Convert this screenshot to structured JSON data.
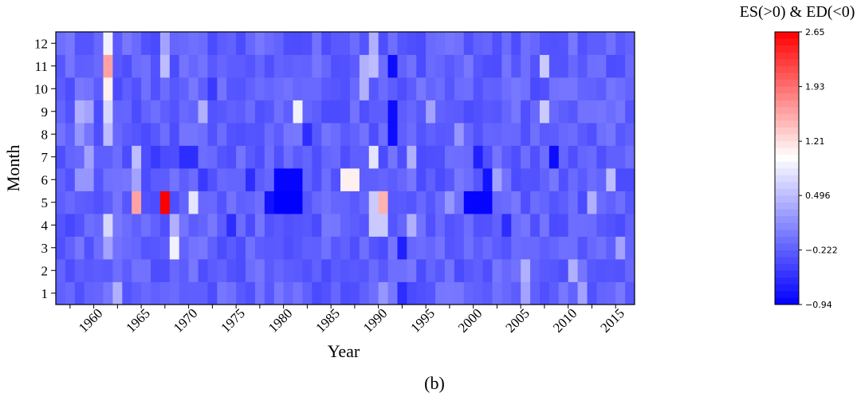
{
  "chart_data": {
    "type": "heatmap",
    "title": "",
    "panel_label": "(b)",
    "xlabel": "Year",
    "ylabel": "Month",
    "x_start": 1956,
    "x_end": 2016,
    "xticks": [
      "1960",
      "1965",
      "1970",
      "1975",
      "1980",
      "1985",
      "1990",
      "1995",
      "2000",
      "2005",
      "2010",
      "2015"
    ],
    "yticks": [
      "1",
      "2",
      "3",
      "4",
      "5",
      "6",
      "7",
      "8",
      "9",
      "10",
      "11",
      "12"
    ],
    "colorbar": {
      "title": "ES(>0) & ED(<0)",
      "min": -0.94,
      "max": 2.65,
      "ticks": [
        "2.65",
        "1.93",
        "1.21",
        "0.496",
        "−0.222",
        "−0.94"
      ],
      "tick_values": [
        2.65,
        1.93,
        1.21,
        0.496,
        -0.222,
        -0.94
      ],
      "colors": [
        "#0000ff",
        "#ffffff",
        "#ff0000"
      ]
    },
    "base_value": -0.2,
    "cells": [
      {
        "year": 1961,
        "month": 12,
        "value": 0.9
      },
      {
        "year": 1961,
        "month": 11,
        "value": 1.6
      },
      {
        "year": 1961,
        "month": 10,
        "value": 1.1
      },
      {
        "year": 1961,
        "month": 9,
        "value": 0.7
      },
      {
        "year": 1961,
        "month": 8,
        "value": 0.5
      },
      {
        "year": 1961,
        "month": 4,
        "value": 0.7
      },
      {
        "year": 1961,
        "month": 3,
        "value": 0.3
      },
      {
        "year": 1962,
        "month": 1,
        "value": 0.4
      },
      {
        "year": 1958,
        "month": 9,
        "value": 0.4
      },
      {
        "year": 1959,
        "month": 9,
        "value": 0.3
      },
      {
        "year": 1958,
        "month": 8,
        "value": 0.2
      },
      {
        "year": 1959,
        "month": 7,
        "value": 0.3
      },
      {
        "year": 1958,
        "month": 6,
        "value": 0.2
      },
      {
        "year": 1959,
        "month": 6,
        "value": 0.2
      },
      {
        "year": 1957,
        "month": 4,
        "value": -0.4
      },
      {
        "year": 1958,
        "month": 4,
        "value": -0.3
      },
      {
        "year": 1964,
        "month": 7,
        "value": 0.5
      },
      {
        "year": 1964,
        "month": 5,
        "value": 1.6
      },
      {
        "year": 1964,
        "month": 6,
        "value": 0.3
      },
      {
        "year": 1967,
        "month": 5,
        "value": 2.65
      },
      {
        "year": 1967,
        "month": 11,
        "value": 0.5
      },
      {
        "year": 1967,
        "month": 12,
        "value": 0.3
      },
      {
        "year": 1968,
        "month": 3,
        "value": 0.9
      },
      {
        "year": 1968,
        "month": 4,
        "value": 0.4
      },
      {
        "year": 1966,
        "month": 7,
        "value": -0.5
      },
      {
        "year": 1969,
        "month": 7,
        "value": -0.6
      },
      {
        "year": 1970,
        "month": 7,
        "value": -0.6
      },
      {
        "year": 1970,
        "month": 5,
        "value": 0.8
      },
      {
        "year": 1971,
        "month": 9,
        "value": 0.4
      },
      {
        "year": 1971,
        "month": 6,
        "value": -0.5
      },
      {
        "year": 1972,
        "month": 10,
        "value": -0.5
      },
      {
        "year": 1974,
        "month": 4,
        "value": -0.6
      },
      {
        "year": 1976,
        "month": 6,
        "value": -0.6
      },
      {
        "year": 1978,
        "month": 5,
        "value": -0.8
      },
      {
        "year": 1979,
        "month": 6,
        "value": -0.9
      },
      {
        "year": 1980,
        "month": 6,
        "value": -0.9
      },
      {
        "year": 1981,
        "month": 6,
        "value": -0.9
      },
      {
        "year": 1979,
        "month": 5,
        "value": -0.94
      },
      {
        "year": 1980,
        "month": 5,
        "value": -0.94
      },
      {
        "year": 1981,
        "month": 5,
        "value": -0.94
      },
      {
        "year": 1981,
        "month": 9,
        "value": 0.9
      },
      {
        "year": 1982,
        "month": 8,
        "value": -0.6
      },
      {
        "year": 1986,
        "month": 6,
        "value": 1.1
      },
      {
        "year": 1987,
        "month": 6,
        "value": 1.1
      },
      {
        "year": 1988,
        "month": 11,
        "value": 0.4
      },
      {
        "year": 1988,
        "month": 10,
        "value": 0.4
      },
      {
        "year": 1989,
        "month": 12,
        "value": 0.4
      },
      {
        "year": 1989,
        "month": 11,
        "value": 0.5
      },
      {
        "year": 1989,
        "month": 7,
        "value": 0.8
      },
      {
        "year": 1989,
        "month": 5,
        "value": 0.6
      },
      {
        "year": 1989,
        "month": 4,
        "value": 0.6
      },
      {
        "year": 1990,
        "month": 5,
        "value": 1.5
      },
      {
        "year": 1990,
        "month": 4,
        "value": 0.6
      },
      {
        "year": 1990,
        "month": 1,
        "value": 0.2
      },
      {
        "year": 1991,
        "month": 11,
        "value": -0.85
      },
      {
        "year": 1991,
        "month": 9,
        "value": -0.85
      },
      {
        "year": 1991,
        "month": 8,
        "value": -0.85
      },
      {
        "year": 1992,
        "month": 3,
        "value": -0.7
      },
      {
        "year": 1992,
        "month": 1,
        "value": -0.6
      },
      {
        "year": 1993,
        "month": 7,
        "value": 0.4
      },
      {
        "year": 1993,
        "month": 4,
        "value": 0.4
      },
      {
        "year": 1995,
        "month": 9,
        "value": 0.3
      },
      {
        "year": 1997,
        "month": 5,
        "value": 0.2
      },
      {
        "year": 1998,
        "month": 8,
        "value": 0.2
      },
      {
        "year": 1999,
        "month": 5,
        "value": -0.9
      },
      {
        "year": 2000,
        "month": 5,
        "value": -0.9
      },
      {
        "year": 2001,
        "month": 5,
        "value": -0.9
      },
      {
        "year": 2001,
        "month": 6,
        "value": -0.8
      },
      {
        "year": 2000,
        "month": 7,
        "value": -0.7
      },
      {
        "year": 2002,
        "month": 6,
        "value": 0.3
      },
      {
        "year": 2003,
        "month": 4,
        "value": -0.6
      },
      {
        "year": 2005,
        "month": 2,
        "value": 0.4
      },
      {
        "year": 2005,
        "month": 1,
        "value": 0.3
      },
      {
        "year": 2007,
        "month": 11,
        "value": 0.6
      },
      {
        "year": 2007,
        "month": 9,
        "value": 0.6
      },
      {
        "year": 2008,
        "month": 7,
        "value": -0.85
      },
      {
        "year": 2010,
        "month": 2,
        "value": 0.4
      },
      {
        "year": 2011,
        "month": 1,
        "value": 0.3
      },
      {
        "year": 2012,
        "month": 5,
        "value": 0.4
      },
      {
        "year": 2014,
        "month": 6,
        "value": 0.5
      },
      {
        "year": 2015,
        "month": 3,
        "value": 0.3
      }
    ]
  }
}
